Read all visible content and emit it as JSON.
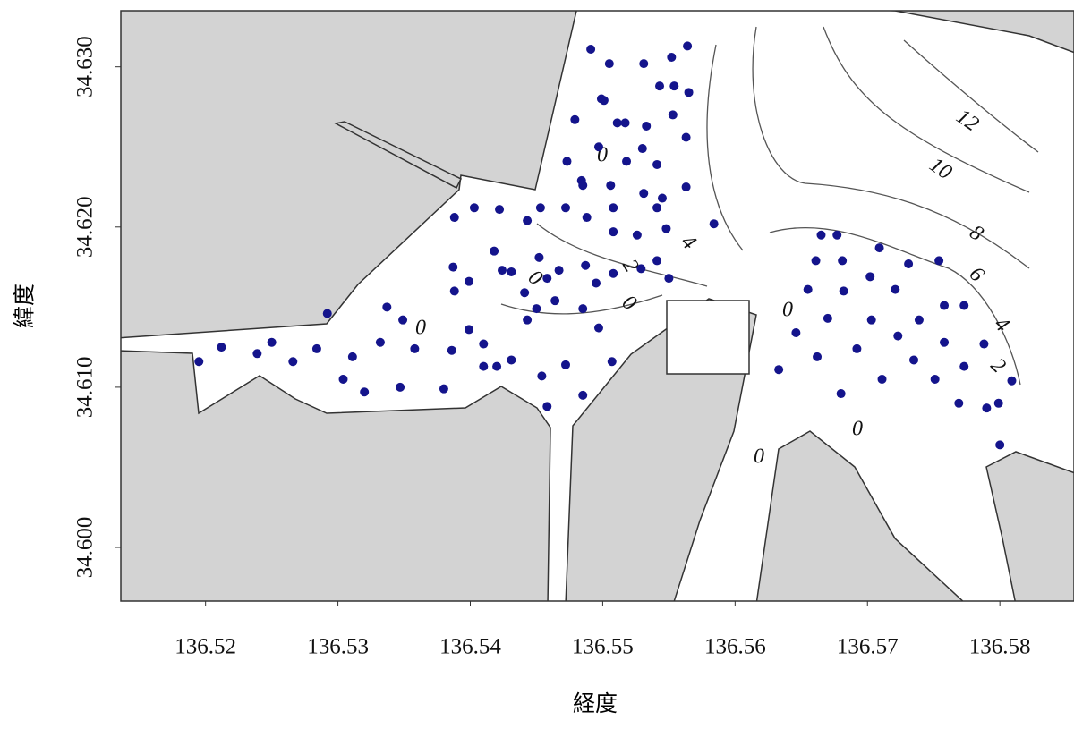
{
  "chart_data": {
    "type": "scatter",
    "x_label": "経度",
    "y_label": "緯度",
    "xlim": [
      136.5136,
      136.5856
    ],
    "ylim": [
      34.59665,
      34.6335
    ],
    "xticks": [
      136.52,
      136.53,
      136.54,
      136.55,
      136.56,
      136.57,
      136.58
    ],
    "yticks": [
      {
        "value": 34.6,
        "label": "34.600"
      },
      {
        "value": 34.61,
        "label": "34.610"
      },
      {
        "value": 34.62,
        "label": "34.620"
      },
      {
        "value": 34.63,
        "label": "34.630"
      }
    ],
    "color": "#14148c",
    "annotations": [
      "0",
      "2",
      "4",
      "0",
      "0",
      "0",
      "0",
      "0",
      "0",
      "12",
      "10",
      "8",
      "6",
      "4",
      "2"
    ],
    "x": [
      136.5195,
      136.5212,
      136.5239,
      136.525,
      136.5266,
      136.5284,
      136.5292,
      136.5304,
      136.5311,
      136.532,
      136.5332,
      136.5337,
      136.5347,
      136.5349,
      136.5358,
      136.538,
      136.5386,
      136.5387,
      136.5388,
      136.5388,
      136.5399,
      136.5399,
      136.5403,
      136.541,
      136.541,
      136.5418,
      136.542,
      136.5422,
      136.5424,
      136.5431,
      136.5431,
      136.5441,
      136.5443,
      136.5443,
      136.5452,
      136.545,
      136.5453,
      136.5454,
      136.5458,
      136.5458,
      136.5464,
      136.5467,
      136.5472,
      136.5472,
      136.5473,
      136.5479,
      136.5484,
      136.5485,
      136.5485,
      136.5485,
      136.5487,
      136.5488,
      136.5491,
      136.5495,
      136.5497,
      136.5497,
      136.5499,
      136.5501,
      136.5505,
      136.5506,
      136.5508,
      136.5508,
      136.5507,
      136.5508,
      136.5511,
      136.5517,
      136.5518,
      136.5526,
      136.5529,
      136.553,
      136.5531,
      136.5531,
      136.5533,
      136.5541,
      136.5541,
      136.5541,
      136.5543,
      136.5545,
      136.5548,
      136.5552,
      136.5553,
      136.5554,
      136.555,
      136.5563,
      136.5564,
      136.5563,
      136.5565,
      136.5584,
      136.5633,
      136.5646,
      136.5655,
      136.5661,
      136.5665,
      136.5677,
      136.5662,
      136.567,
      136.5681,
      136.5682,
      136.568,
      136.5692,
      136.5702,
      136.5703,
      136.5709,
      136.5711,
      136.5721,
      136.5723,
      136.5731,
      136.5735,
      136.5739,
      136.5751,
      136.5754,
      136.5758,
      136.5758,
      136.5773,
      136.5773,
      136.5769,
      136.5788,
      136.579,
      136.5799,
      136.58,
      136.5809
    ],
    "y": [
      34.6116,
      34.6125,
      34.6121,
      34.6128,
      34.6116,
      34.6124,
      34.6146,
      34.6105,
      34.6119,
      34.6097,
      34.6128,
      34.615,
      34.61,
      34.6142,
      34.6124,
      34.6099,
      34.6123,
      34.6175,
      34.6206,
      34.616,
      34.6136,
      34.6166,
      34.6212,
      34.6127,
      34.6113,
      34.6185,
      34.6113,
      34.6211,
      34.6173,
      34.6172,
      34.6117,
      34.6159,
      34.6142,
      34.6204,
      34.6181,
      34.6149,
      34.6212,
      34.6107,
      34.6088,
      34.6168,
      34.6154,
      34.6173,
      34.6212,
      34.6114,
      34.6241,
      34.6267,
      34.6229,
      34.6095,
      34.6226,
      34.6149,
      34.6176,
      34.6206,
      34.6311,
      34.6165,
      34.6137,
      34.625,
      34.628,
      34.6279,
      34.6302,
      34.6226,
      34.6212,
      34.6171,
      34.6116,
      34.6197,
      34.6265,
      34.6265,
      34.6241,
      34.6195,
      34.6174,
      34.6249,
      34.6302,
      34.6221,
      34.6263,
      34.6212,
      34.6239,
      34.6179,
      34.6288,
      34.6218,
      34.6199,
      34.6306,
      34.627,
      34.6288,
      34.6168,
      34.6256,
      34.6313,
      34.6225,
      34.6284,
      34.6202,
      34.6111,
      34.6134,
      34.6161,
      34.6179,
      34.6195,
      34.6195,
      34.6119,
      34.6143,
      34.6179,
      34.616,
      34.6096,
      34.6124,
      34.6169,
      34.6142,
      34.6187,
      34.6105,
      34.6161,
      34.6132,
      34.6177,
      34.6117,
      34.6142,
      34.6105,
      34.6179,
      34.6151,
      34.6128,
      34.6151,
      34.6113,
      34.609,
      34.6127,
      34.6087,
      34.609,
      34.6064,
      34.6104
    ]
  }
}
